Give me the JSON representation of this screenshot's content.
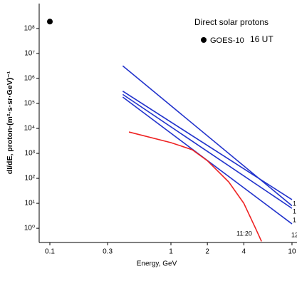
{
  "chart_data": {
    "type": "line",
    "xlabel": "Energy, GeV",
    "ylabel": "dI/dE, proton·(m²·s·sr·GeV)⁻¹",
    "log_x": true,
    "log_y": true,
    "xlim": [
      0.0816,
      11
    ],
    "ylim": [
      0.27,
      1000000000
    ],
    "xticks": [
      0.1,
      0.3,
      1,
      2,
      4,
      10
    ],
    "yticks": [
      {
        "value": 1,
        "label": "10⁰"
      },
      {
        "value": 10,
        "label": "10¹"
      },
      {
        "value": 100,
        "label": "10²"
      },
      {
        "value": 1000,
        "label": "10³"
      },
      {
        "value": 10000,
        "label": "10⁴"
      },
      {
        "value": 100000,
        "label": "10⁵"
      },
      {
        "value": 1000000,
        "label": "10⁶"
      },
      {
        "value": 10000000,
        "label": "10⁷"
      },
      {
        "value": 100000000,
        "label": "10⁸"
      }
    ],
    "legend_title": "Direct solar protons",
    "points": {
      "name": "GOES-10",
      "note": "16 UT",
      "color": "#000000",
      "x": [
        0.1
      ],
      "values": [
        190000000
      ]
    },
    "series": [
      {
        "color": "#2233cc",
        "x": [
          0.4,
          10
        ],
        "values": [
          3200000,
          8
        ]
      },
      {
        "color": "#2233cc",
        "x": [
          0.4,
          10
        ],
        "values": [
          310000,
          14
        ]
      },
      {
        "color": "#2233cc",
        "x": [
          0.4,
          10
        ],
        "values": [
          230000,
          6.3
        ]
      },
      {
        "color": "#2233cc",
        "x": [
          0.4,
          10
        ],
        "values": [
          180000,
          1.5
        ]
      },
      {
        "color": "#ee2222",
        "x": [
          0.45,
          1,
          1.5,
          2,
          3,
          4,
          5,
          5.6
        ],
        "values": [
          7200,
          2700,
          1400,
          510,
          72,
          10,
          1,
          0.3
        ]
      }
    ],
    "annotations": [
      "11:20",
      "1",
      "1",
      "1",
      "12"
    ]
  }
}
